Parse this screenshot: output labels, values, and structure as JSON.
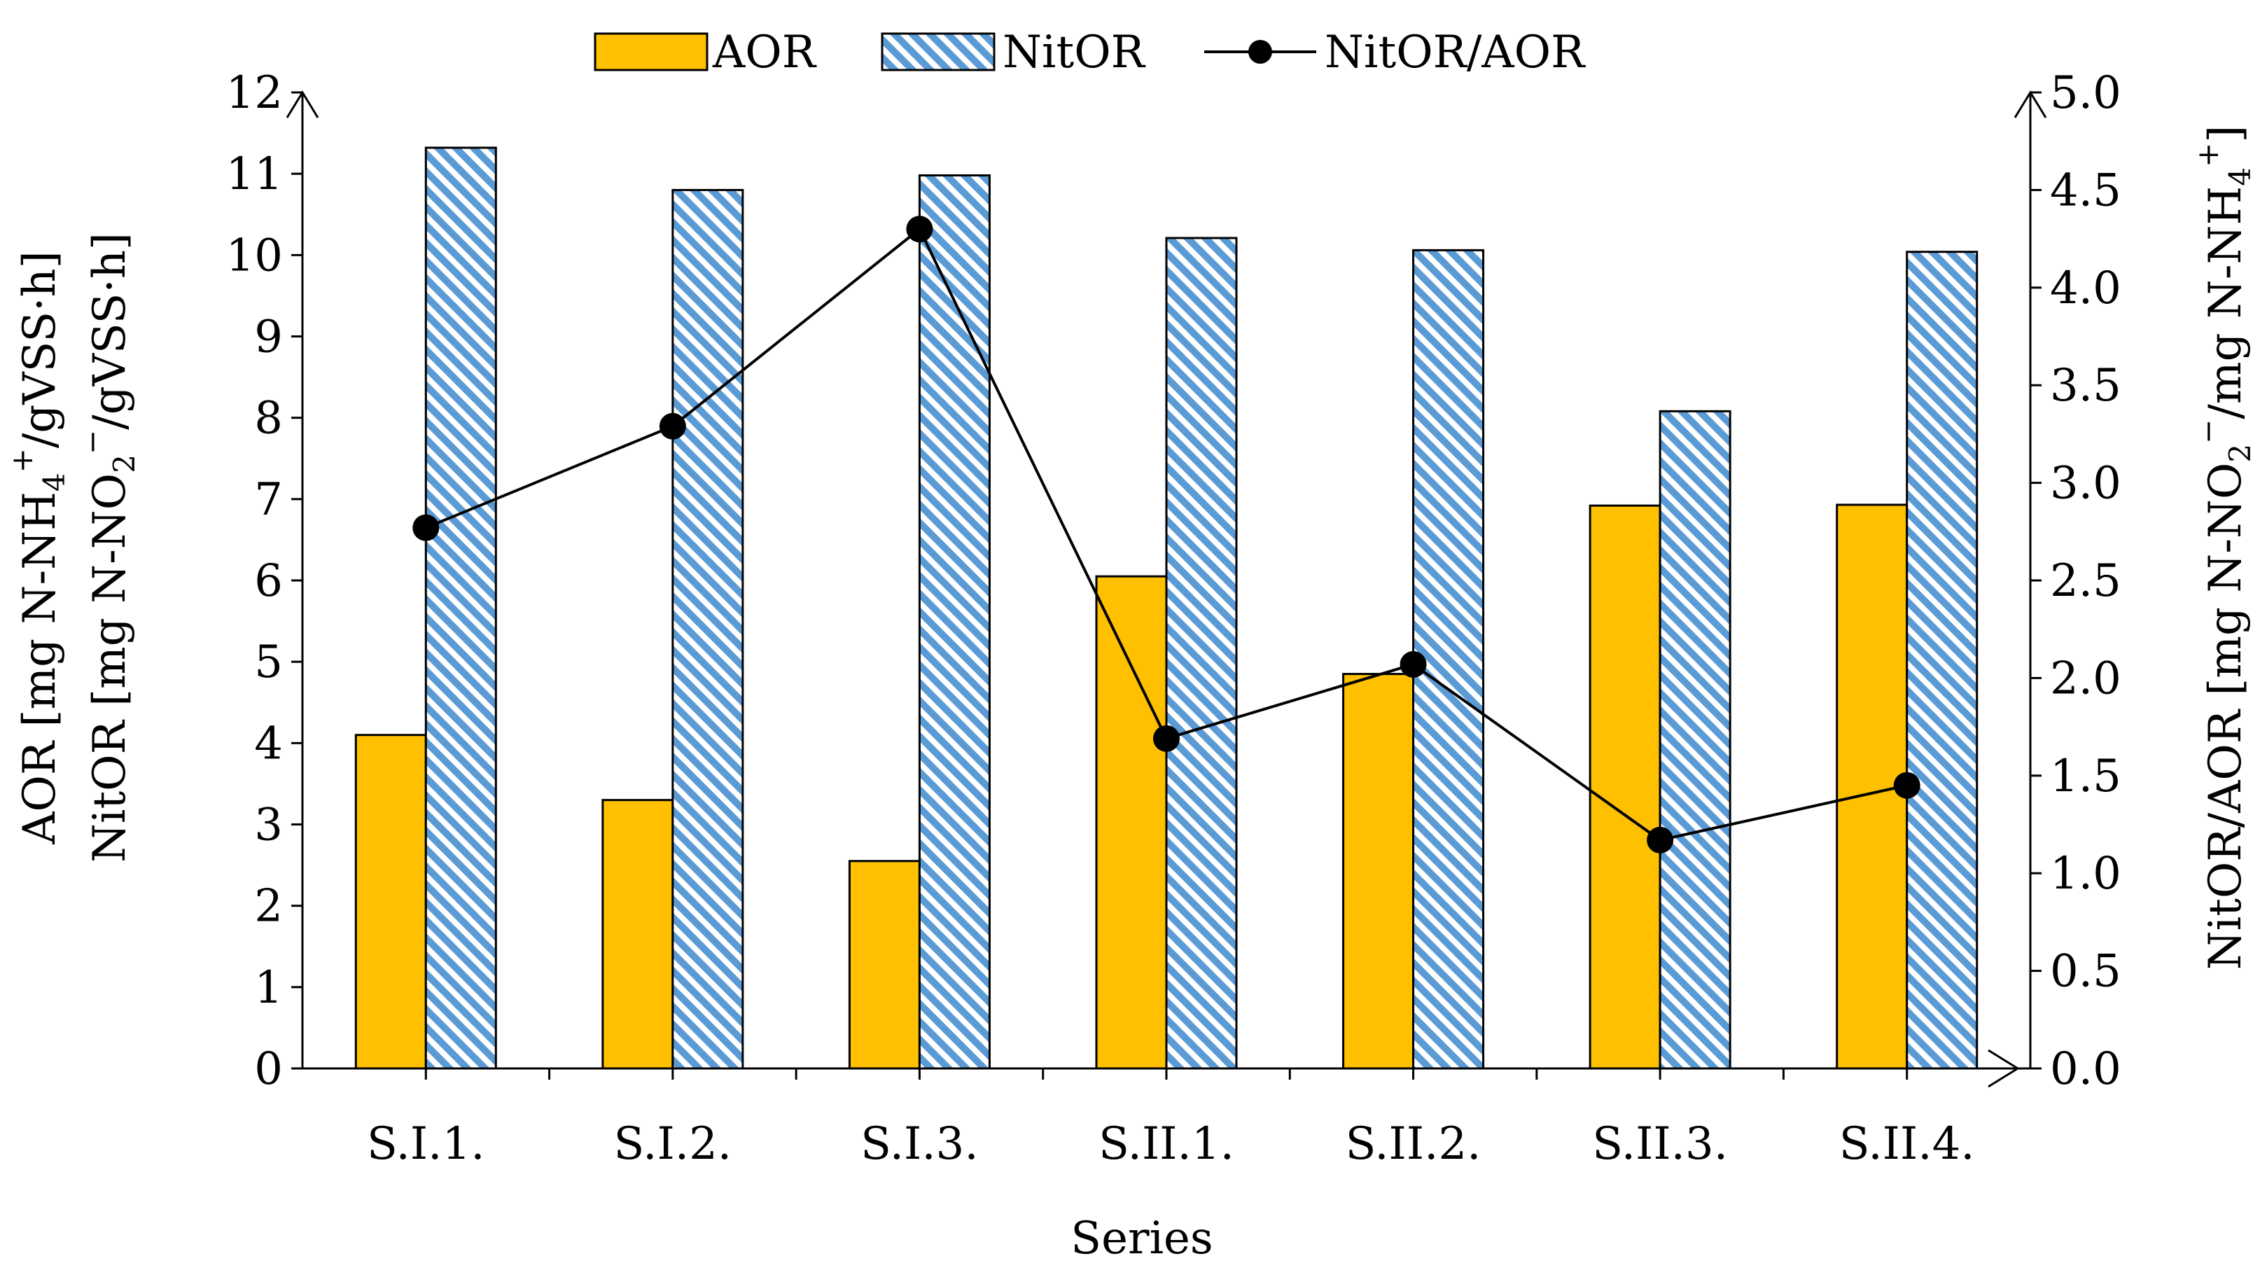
{
  "chart_data": {
    "type": "bar",
    "xlabel": "Series",
    "categories": [
      "S.I.1.",
      "S.I.2.",
      "S.I.3.",
      "S.II.1.",
      "S.II.2.",
      "S.II.3.",
      "S.II.4."
    ],
    "series": [
      {
        "name": "AOR",
        "type": "bar",
        "axis": "left",
        "color": "#FFC000",
        "pattern": "solid",
        "values": [
          4.1,
          3.3,
          2.55,
          6.05,
          4.85,
          6.92,
          6.93
        ]
      },
      {
        "name": "NitOR",
        "type": "bar",
        "axis": "left",
        "color": "#5B9BD5",
        "pattern": "diagonal-hatch",
        "values": [
          11.32,
          10.8,
          10.98,
          10.21,
          10.06,
          8.08,
          10.04
        ]
      },
      {
        "name": "NitOR/AOR",
        "type": "line",
        "axis": "right",
        "color": "#000000",
        "marker": "circle",
        "values": [
          2.77,
          3.29,
          4.3,
          1.69,
          2.07,
          1.17,
          1.45
        ]
      }
    ],
    "y_left": {
      "label_line1": "AOR [mg N-NH",
      "label_line1_sub": "4",
      "label_line1_sup": "+",
      "label_line1_end": "/gVSS·h]",
      "label_line2": "NitOR [mg N-NO",
      "label_line2_sub": "2",
      "label_line2_sup": "−",
      "label_line2_end": "/gVSS·h]",
      "ylim": [
        0,
        12
      ],
      "ticks": [
        "0",
        "1",
        "2",
        "3",
        "4",
        "5",
        "6",
        "7",
        "8",
        "9",
        "10",
        "11",
        "12"
      ]
    },
    "y_right": {
      "label_a": "NitOR/AOR [mg N-NO",
      "label_a_sub": "2",
      "label_a_sup": "−",
      "label_b": "/mg N-NH",
      "label_b_sub": "4",
      "label_b_sup": "+",
      "label_c": "]",
      "ylim": [
        0,
        5
      ],
      "ticks": [
        "0.0",
        "0.5",
        "1.0",
        "1.5",
        "2.0",
        "2.5",
        "3.0",
        "3.5",
        "4.0",
        "4.5",
        "5.0"
      ]
    },
    "legend": {
      "placement": "top-center",
      "entries": [
        "AOR",
        "NitOR",
        "NitOR/AOR"
      ]
    },
    "grid": false
  }
}
